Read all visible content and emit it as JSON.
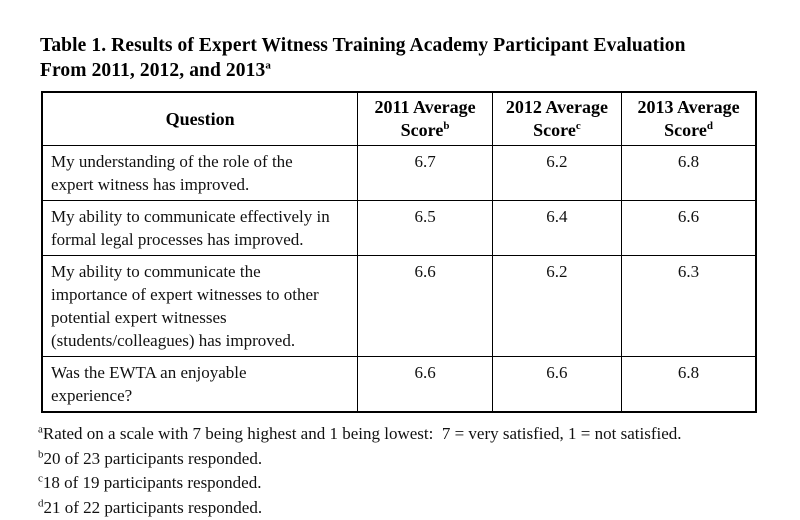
{
  "title": {
    "line1": "Table 1. Results of Expert Witness Training Academy Participant Evaluation",
    "line2": "From 2011, 2012, and 2013",
    "note_marker": "a"
  },
  "table": {
    "headers": [
      {
        "label": "Question",
        "sup": ""
      },
      {
        "label": "2011 Average Score",
        "sup": "b"
      },
      {
        "label": "2012 Average Score",
        "sup": "c"
      },
      {
        "label": "2013 Average Score",
        "sup": "d"
      }
    ],
    "rows": [
      {
        "question": "My understanding of the role of the expert witness has improved.",
        "scores": [
          "6.7",
          "6.2",
          "6.8"
        ]
      },
      {
        "question": "My ability to communicate effectively in formal legal processes has improved.",
        "scores": [
          "6.5",
          "6.4",
          "6.6"
        ]
      },
      {
        "question": "My ability to communicate the importance of expert witnesses to other potential expert witnesses (students/colleagues) has improved.",
        "scores": [
          "6.6",
          "6.2",
          "6.3"
        ]
      },
      {
        "question": "Was the EWTA an enjoyable experience?",
        "scores": [
          "6.6",
          "6.6",
          "6.8"
        ]
      }
    ]
  },
  "footnotes": [
    {
      "marker": "a",
      "text": "Rated on a scale with 7 being highest and 1 being lowest:  7 = very satisfied, 1 = not satisfied."
    },
    {
      "marker": "b",
      "text": "20 of 23 participants responded."
    },
    {
      "marker": "c",
      "text": "18 of 19 participants responded."
    },
    {
      "marker": "d",
      "text": "21 of 22 participants responded."
    }
  ],
  "colors": {
    "text": "#000000",
    "border": "#000000",
    "background": "#ffffff"
  }
}
